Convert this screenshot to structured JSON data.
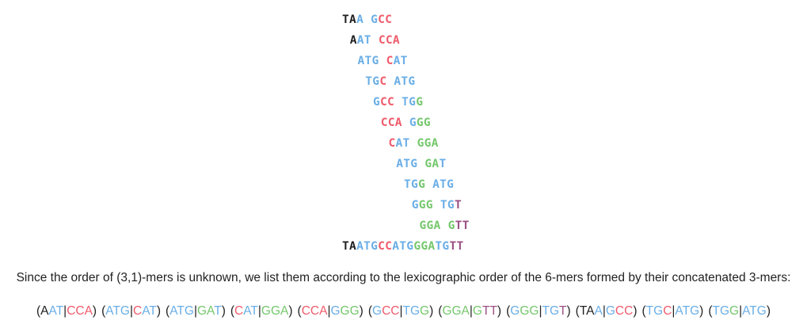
{
  "colors": {
    "black": "#1f1f1f",
    "blue": "#6aaee6",
    "red": "#ef5a6b",
    "green": "#75c76c",
    "purple": "#9a4f82",
    "text": "#222222"
  },
  "staircase": [
    {
      "segments": [
        {
          "t": "TA",
          "c": "black"
        },
        {
          "t": "A",
          "c": "blue"
        },
        {
          "t": " ",
          "c": "black"
        },
        {
          "t": "G",
          "c": "blue"
        },
        {
          "t": "CC",
          "c": "red"
        }
      ]
    },
    {
      "segments": [
        {
          "t": "A",
          "c": "black"
        },
        {
          "t": "AT",
          "c": "blue"
        },
        {
          "t": " ",
          "c": "black"
        },
        {
          "t": "CCA",
          "c": "red"
        }
      ]
    },
    {
      "segments": [
        {
          "t": "ATG",
          "c": "blue"
        },
        {
          "t": " ",
          "c": "black"
        },
        {
          "t": "C",
          "c": "red"
        },
        {
          "t": "AT",
          "c": "blue"
        }
      ]
    },
    {
      "segments": [
        {
          "t": "TG",
          "c": "blue"
        },
        {
          "t": "C",
          "c": "red"
        },
        {
          "t": " ",
          "c": "black"
        },
        {
          "t": "ATG",
          "c": "blue"
        }
      ]
    },
    {
      "segments": [
        {
          "t": "G",
          "c": "blue"
        },
        {
          "t": "CC",
          "c": "red"
        },
        {
          "t": " ",
          "c": "black"
        },
        {
          "t": "TG",
          "c": "blue"
        },
        {
          "t": "G",
          "c": "green"
        }
      ]
    },
    {
      "segments": [
        {
          "t": "CCA",
          "c": "red"
        },
        {
          "t": " ",
          "c": "black"
        },
        {
          "t": "G",
          "c": "blue"
        },
        {
          "t": "GG",
          "c": "green"
        }
      ]
    },
    {
      "segments": [
        {
          "t": "C",
          "c": "red"
        },
        {
          "t": "AT",
          "c": "blue"
        },
        {
          "t": " ",
          "c": "black"
        },
        {
          "t": "GGA",
          "c": "green"
        }
      ]
    },
    {
      "segments": [
        {
          "t": "ATG",
          "c": "blue"
        },
        {
          "t": " ",
          "c": "black"
        },
        {
          "t": "GA",
          "c": "green"
        },
        {
          "t": "T",
          "c": "blue"
        }
      ]
    },
    {
      "segments": [
        {
          "t": "TG",
          "c": "blue"
        },
        {
          "t": "G",
          "c": "green"
        },
        {
          "t": " ",
          "c": "black"
        },
        {
          "t": "ATG",
          "c": "blue"
        }
      ]
    },
    {
      "segments": [
        {
          "t": "G",
          "c": "blue"
        },
        {
          "t": "GG",
          "c": "green"
        },
        {
          "t": " ",
          "c": "black"
        },
        {
          "t": "TG",
          "c": "blue"
        },
        {
          "t": "T",
          "c": "purple"
        }
      ]
    },
    {
      "segments": [
        {
          "t": "GGA",
          "c": "green"
        },
        {
          "t": " ",
          "c": "black"
        },
        {
          "t": "G",
          "c": "green"
        },
        {
          "t": "TT",
          "c": "purple"
        }
      ]
    }
  ],
  "assembled": {
    "segments": [
      {
        "t": "TA",
        "c": "black"
      },
      {
        "t": "ATG",
        "c": "blue"
      },
      {
        "t": "CC",
        "c": "red"
      },
      {
        "t": "ATG",
        "c": "blue"
      },
      {
        "t": "GGA",
        "c": "green"
      },
      {
        "t": "TG",
        "c": "blue"
      },
      {
        "t": "TT",
        "c": "purple"
      }
    ]
  },
  "description": "Since the order of (3,1)-mers is unknown, we list them according to the lexicographic order of the 6-mers formed by their concatenated 3-mers:",
  "pairs": [
    {
      "a": [
        {
          "t": "A",
          "c": "black"
        },
        {
          "t": "AT",
          "c": "blue"
        }
      ],
      "b": [
        {
          "t": "CCA",
          "c": "red"
        }
      ]
    },
    {
      "a": [
        {
          "t": "ATG",
          "c": "blue"
        }
      ],
      "b": [
        {
          "t": "C",
          "c": "red"
        },
        {
          "t": "AT",
          "c": "blue"
        }
      ]
    },
    {
      "a": [
        {
          "t": "ATG",
          "c": "blue"
        }
      ],
      "b": [
        {
          "t": "GA",
          "c": "green"
        },
        {
          "t": "T",
          "c": "blue"
        }
      ]
    },
    {
      "a": [
        {
          "t": "C",
          "c": "red"
        },
        {
          "t": "AT",
          "c": "blue"
        }
      ],
      "b": [
        {
          "t": "GGA",
          "c": "green"
        }
      ]
    },
    {
      "a": [
        {
          "t": "CCA",
          "c": "red"
        }
      ],
      "b": [
        {
          "t": "G",
          "c": "blue"
        },
        {
          "t": "GG",
          "c": "green"
        }
      ]
    },
    {
      "a": [
        {
          "t": "G",
          "c": "blue"
        },
        {
          "t": "CC",
          "c": "red"
        }
      ],
      "b": [
        {
          "t": "TG",
          "c": "blue"
        },
        {
          "t": "G",
          "c": "green"
        }
      ]
    },
    {
      "a": [
        {
          "t": "GGA",
          "c": "green"
        }
      ],
      "b": [
        {
          "t": "G",
          "c": "green"
        },
        {
          "t": "TT",
          "c": "purple"
        }
      ]
    },
    {
      "a": [
        {
          "t": "G",
          "c": "blue"
        },
        {
          "t": "GG",
          "c": "green"
        }
      ],
      "b": [
        {
          "t": "TG",
          "c": "blue"
        },
        {
          "t": "T",
          "c": "purple"
        }
      ]
    },
    {
      "a": [
        {
          "t": "TA",
          "c": "black"
        },
        {
          "t": "A",
          "c": "blue"
        }
      ],
      "b": [
        {
          "t": "G",
          "c": "blue"
        },
        {
          "t": "CC",
          "c": "red"
        }
      ]
    },
    {
      "a": [
        {
          "t": "TG",
          "c": "blue"
        },
        {
          "t": "C",
          "c": "red"
        }
      ],
      "b": [
        {
          "t": "ATG",
          "c": "blue"
        }
      ]
    },
    {
      "a": [
        {
          "t": "TG",
          "c": "blue"
        },
        {
          "t": "G",
          "c": "green"
        }
      ],
      "b": [
        {
          "t": "ATG",
          "c": "blue"
        }
      ]
    }
  ]
}
